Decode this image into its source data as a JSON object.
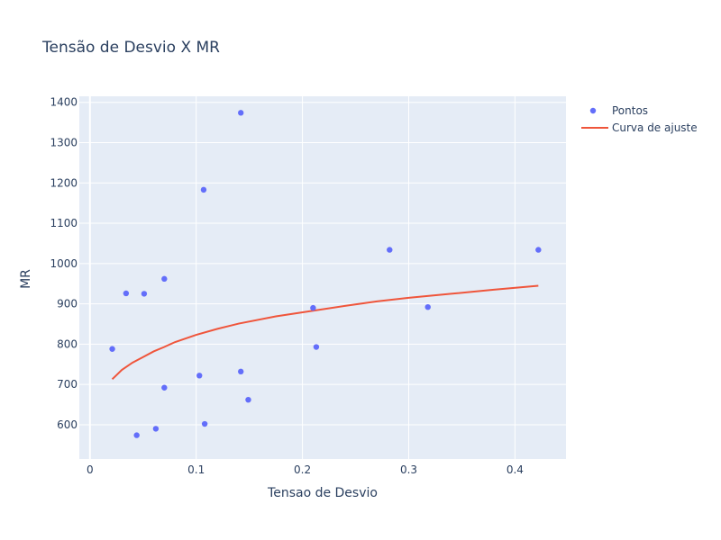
{
  "chart_data": {
    "type": "scatter",
    "title": "Tensão de Desvio X MR",
    "xlabel": "Tensao de Desvio",
    "ylabel": "MR",
    "xlim": [
      -0.01,
      0.448
    ],
    "ylim": [
      515,
      1415
    ],
    "x_ticks": [
      0,
      0.1,
      0.2,
      0.3,
      0.4
    ],
    "x_tick_labels": [
      "0",
      "0.1",
      "0.2",
      "0.3",
      "0.4"
    ],
    "y_ticks": [
      600,
      700,
      800,
      900,
      1000,
      1100,
      1200,
      1300,
      1400
    ],
    "y_tick_labels": [
      "600",
      "700",
      "800",
      "900",
      "1000",
      "1100",
      "1200",
      "1300",
      "1400"
    ],
    "grid": true,
    "legend_position": "top-right",
    "series": [
      {
        "name": "Pontos",
        "mode": "markers",
        "color": "#636efa",
        "points": [
          {
            "x": 0.021,
            "y": 788
          },
          {
            "x": 0.034,
            "y": 926
          },
          {
            "x": 0.044,
            "y": 574
          },
          {
            "x": 0.051,
            "y": 925
          },
          {
            "x": 0.062,
            "y": 590
          },
          {
            "x": 0.07,
            "y": 962
          },
          {
            "x": 0.07,
            "y": 692
          },
          {
            "x": 0.103,
            "y": 722
          },
          {
            "x": 0.107,
            "y": 1183
          },
          {
            "x": 0.108,
            "y": 602
          },
          {
            "x": 0.142,
            "y": 1374
          },
          {
            "x": 0.142,
            "y": 732
          },
          {
            "x": 0.149,
            "y": 662
          },
          {
            "x": 0.21,
            "y": 890
          },
          {
            "x": 0.213,
            "y": 793
          },
          {
            "x": 0.282,
            "y": 1034
          },
          {
            "x": 0.318,
            "y": 892
          },
          {
            "x": 0.422,
            "y": 1034
          }
        ]
      },
      {
        "name": "Curva de ajuste",
        "mode": "lines",
        "color": "#ef553b",
        "points": [
          {
            "x": 0.021,
            "y": 713
          },
          {
            "x": 0.03,
            "y": 736
          },
          {
            "x": 0.04,
            "y": 754
          },
          {
            "x": 0.05,
            "y": 768
          },
          {
            "x": 0.06,
            "y": 782
          },
          {
            "x": 0.07,
            "y": 793
          },
          {
            "x": 0.08,
            "y": 805
          },
          {
            "x": 0.1,
            "y": 823
          },
          {
            "x": 0.12,
            "y": 838
          },
          {
            "x": 0.14,
            "y": 851
          },
          {
            "x": 0.175,
            "y": 869
          },
          {
            "x": 0.21,
            "y": 883
          },
          {
            "x": 0.24,
            "y": 895
          },
          {
            "x": 0.27,
            "y": 906
          },
          {
            "x": 0.3,
            "y": 915
          },
          {
            "x": 0.34,
            "y": 925
          },
          {
            "x": 0.38,
            "y": 935
          },
          {
            "x": 0.422,
            "y": 945
          }
        ]
      }
    ]
  }
}
